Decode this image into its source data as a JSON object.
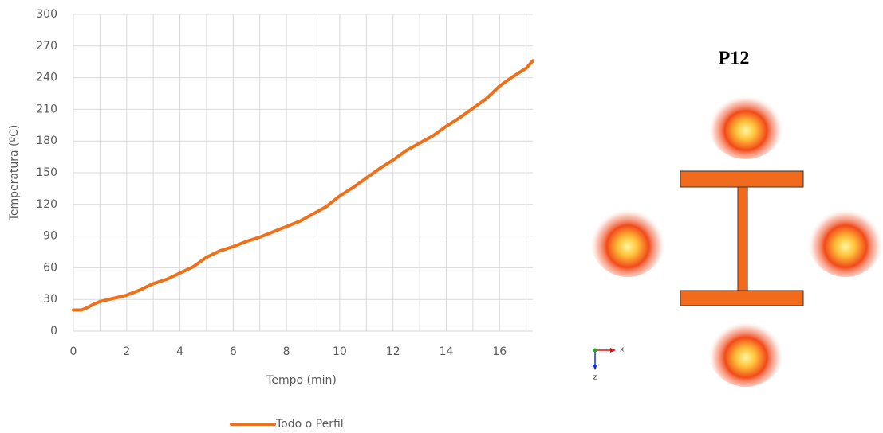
{
  "chart_data": {
    "type": "line",
    "x_label": "Tempo (min)",
    "y_label": "Temperatura (ºC)",
    "x": [
      0,
      0.3,
      0.5,
      0.8,
      1,
      1.5,
      2,
      2.5,
      3,
      3.5,
      4,
      4.5,
      5,
      5.5,
      6,
      6.5,
      7,
      7.5,
      8,
      8.5,
      9,
      9.5,
      10,
      10.5,
      11,
      11.5,
      12,
      12.5,
      13,
      13.5,
      14,
      14.5,
      15,
      15.5,
      16,
      16.5,
      17,
      17.25
    ],
    "series": [
      {
        "name": "Todo o Perfil",
        "color": "#f0701a",
        "values": [
          20,
          20,
          22,
          26,
          28,
          31,
          34,
          39,
          45,
          49,
          55,
          61,
          70,
          76,
          80,
          85,
          89,
          94,
          99,
          104,
          111,
          118,
          128,
          136,
          145,
          154,
          162,
          171,
          178,
          185,
          194,
          202,
          211,
          220,
          232,
          241,
          249,
          256
        ]
      }
    ],
    "xlim": [
      0,
      17.25
    ],
    "ylim": [
      0,
      300
    ],
    "xticks": [
      0,
      2,
      4,
      6,
      8,
      10,
      12,
      14,
      16
    ],
    "xminorticks": [
      1,
      3,
      5,
      7,
      9,
      11,
      13,
      15,
      17
    ],
    "yticks": [
      0,
      30,
      60,
      90,
      120,
      150,
      180,
      210,
      240,
      270,
      300
    ],
    "grid": true,
    "legend": "bottom"
  },
  "diagram": {
    "title": "P12",
    "axis_labels": [
      "x",
      "z"
    ]
  }
}
